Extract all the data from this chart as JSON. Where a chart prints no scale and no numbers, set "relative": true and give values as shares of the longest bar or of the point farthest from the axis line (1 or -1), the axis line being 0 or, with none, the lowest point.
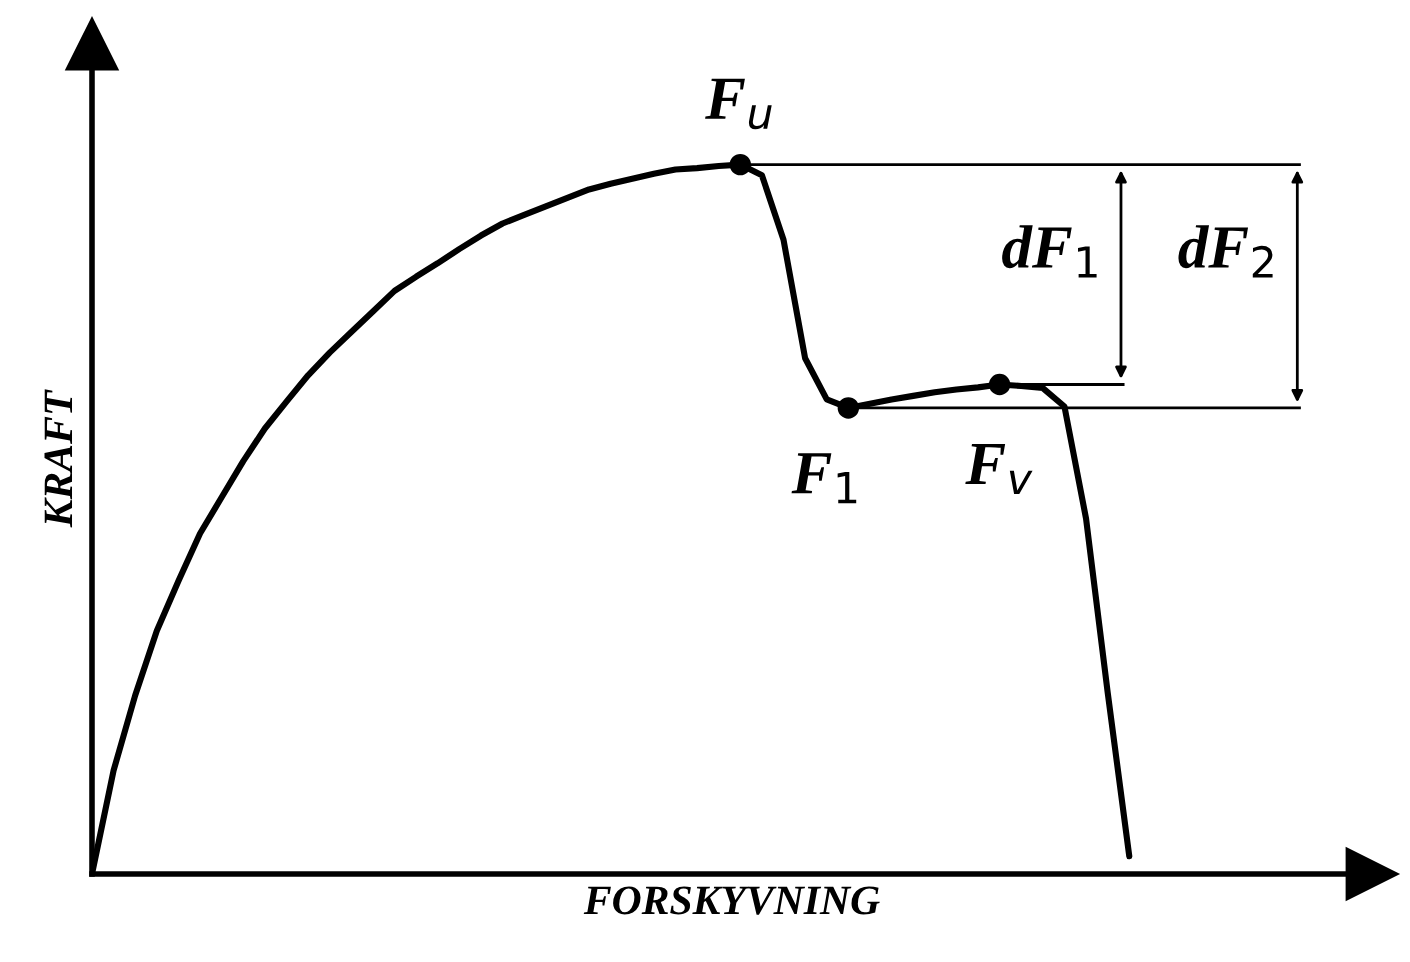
{
  "chart_data": {
    "type": "line",
    "relative": true,
    "xlabel": "FORSKYVNING",
    "ylabel": "KRAFT",
    "categories": [
      null,
      null,
      null,
      null,
      null,
      null,
      null,
      null,
      null,
      null,
      null,
      null,
      null,
      null,
      null,
      null,
      null,
      null,
      null,
      null,
      null,
      null,
      null,
      null,
      null,
      null,
      null,
      null,
      null,
      null,
      null,
      null,
      null,
      null,
      null,
      null,
      null,
      null,
      null,
      null,
      null,
      null,
      null,
      null,
      null,
      null,
      null,
      null,
      null
    ],
    "series": [
      {
        "color": "#000000",
        "values": [
          0,
          0.146,
          0.252,
          0.343,
          0.413,
          0.48,
          0.531,
          0.582,
          0.628,
          0.666,
          0.703,
          0.735,
          0.764,
          0.793,
          0.822,
          0.842,
          0.861,
          0.881,
          0.9,
          0.917,
          0.929,
          0.941,
          0.953,
          0.965,
          0.973,
          0.98,
          0.987,
          0.993,
          0.995,
          0.998,
          1,
          0.985,
          0.894,
          0.727,
          0.669,
          0.657,
          0.663,
          0.669,
          0.674,
          0.679,
          0.683,
          0.686,
          0.69,
          0.688,
          0.685,
          0.659,
          0.501,
          0.256,
          0.025
        ]
      }
    ],
    "annotations": [
      "F$_{u}$",
      "F$_{1}$",
      "F$_{v}$",
      "dF$_{1}$",
      "dF$_{2}$"
    ]
  }
}
